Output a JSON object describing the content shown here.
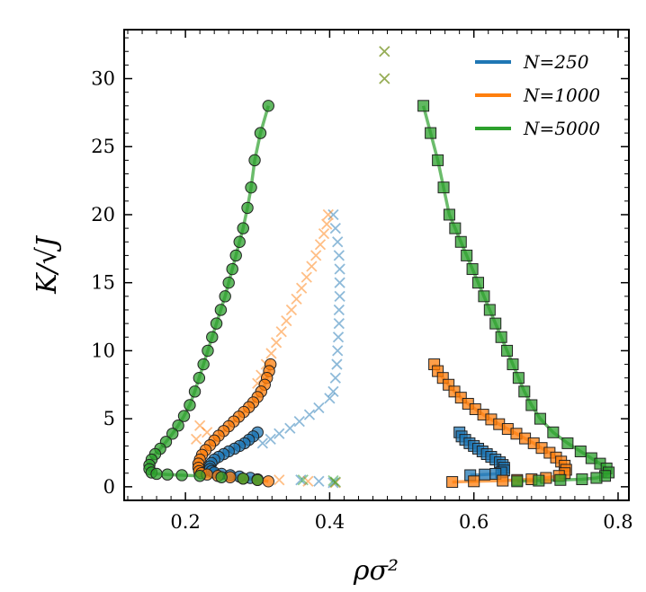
{
  "chart_data": {
    "type": "scatter",
    "title": "",
    "xlabel": "ρσ²",
    "ylabel": "K/√J",
    "xlim": [
      0.115,
      0.815
    ],
    "ylim": [
      -1.0,
      33.6
    ],
    "x_ticks": [
      0.2,
      0.4,
      0.6,
      0.8
    ],
    "x_tick_labels": [
      "0.2",
      "0.4",
      "0.6",
      "0.8"
    ],
    "y_ticks": [
      0,
      5,
      10,
      15,
      20,
      25,
      30
    ],
    "y_tick_labels": [
      "0",
      "5",
      "10",
      "15",
      "20",
      "25",
      "30"
    ],
    "legend_position": "top-right",
    "legend": [
      {
        "label": "N=250",
        "color": "#1f77b4"
      },
      {
        "label": "N=1000",
        "color": "#ff7f0e"
      },
      {
        "label": "N=5000",
        "color": "#2ca02c"
      }
    ],
    "series": [
      {
        "name": "N=250",
        "color": "#1f77b4",
        "gas": [
          [
            0.3,
            4.0
          ],
          [
            0.294,
            3.7
          ],
          [
            0.288,
            3.45
          ],
          [
            0.282,
            3.2
          ],
          [
            0.275,
            3.0
          ],
          [
            0.268,
            2.8
          ],
          [
            0.26,
            2.6
          ],
          [
            0.253,
            2.4
          ],
          [
            0.246,
            2.2
          ],
          [
            0.24,
            2.0
          ],
          [
            0.236,
            1.75
          ],
          [
            0.234,
            1.5
          ],
          [
            0.234,
            1.3
          ],
          [
            0.236,
            1.15
          ],
          [
            0.24,
            1.05
          ],
          [
            0.25,
            0.95
          ],
          [
            0.262,
            0.85
          ],
          [
            0.275,
            0.75
          ],
          [
            0.29,
            0.65
          ],
          [
            0.3,
            0.55
          ]
        ],
        "liquid": [
          [
            0.58,
            4.0
          ],
          [
            0.583,
            3.7
          ],
          [
            0.588,
            3.45
          ],
          [
            0.594,
            3.2
          ],
          [
            0.6,
            3.0
          ],
          [
            0.606,
            2.8
          ],
          [
            0.612,
            2.6
          ],
          [
            0.618,
            2.4
          ],
          [
            0.624,
            2.2
          ],
          [
            0.63,
            2.0
          ],
          [
            0.636,
            1.8
          ],
          [
            0.64,
            1.6
          ],
          [
            0.642,
            1.4
          ],
          [
            0.642,
            1.2
          ],
          [
            0.638,
            1.05
          ],
          [
            0.63,
            0.95
          ],
          [
            0.615,
            0.9
          ],
          [
            0.595,
            0.85
          ]
        ],
        "crosses": [
          [
            0.405,
            20.0
          ],
          [
            0.408,
            19.0
          ],
          [
            0.411,
            18.0
          ],
          [
            0.413,
            17.0
          ],
          [
            0.414,
            16.0
          ],
          [
            0.414,
            15.0
          ],
          [
            0.414,
            14.0
          ],
          [
            0.413,
            13.0
          ],
          [
            0.413,
            12.0
          ],
          [
            0.412,
            11.0
          ],
          [
            0.411,
            10.0
          ],
          [
            0.41,
            9.0
          ],
          [
            0.408,
            8.0
          ],
          [
            0.405,
            7.0
          ],
          [
            0.4,
            6.5
          ],
          [
            0.385,
            5.8
          ],
          [
            0.372,
            5.3
          ],
          [
            0.358,
            4.8
          ],
          [
            0.345,
            4.3
          ],
          [
            0.33,
            3.9
          ],
          [
            0.318,
            3.5
          ],
          [
            0.307,
            3.2
          ],
          [
            0.36,
            0.5
          ],
          [
            0.385,
            0.4
          ],
          [
            0.405,
            0.3
          ]
        ]
      },
      {
        "name": "N=1000",
        "color": "#ff7f0e",
        "gas": [
          [
            0.318,
            9.0
          ],
          [
            0.316,
            8.5
          ],
          [
            0.313,
            8.0
          ],
          [
            0.31,
            7.5
          ],
          [
            0.305,
            7.0
          ],
          [
            0.3,
            6.6
          ],
          [
            0.294,
            6.2
          ],
          [
            0.288,
            5.85
          ],
          [
            0.281,
            5.5
          ],
          [
            0.274,
            5.15
          ],
          [
            0.267,
            4.8
          ],
          [
            0.26,
            4.45
          ],
          [
            0.253,
            4.1
          ],
          [
            0.246,
            3.75
          ],
          [
            0.24,
            3.4
          ],
          [
            0.234,
            3.05
          ],
          [
            0.228,
            2.7
          ],
          [
            0.223,
            2.35
          ],
          [
            0.22,
            2.0
          ],
          [
            0.218,
            1.7
          ],
          [
            0.218,
            1.4
          ],
          [
            0.219,
            1.15
          ],
          [
            0.222,
            1.0
          ],
          [
            0.23,
            0.9
          ],
          [
            0.245,
            0.8
          ],
          [
            0.262,
            0.7
          ],
          [
            0.28,
            0.6
          ],
          [
            0.3,
            0.5
          ],
          [
            0.315,
            0.4
          ]
        ],
        "liquid": [
          [
            0.545,
            9.0
          ],
          [
            0.55,
            8.5
          ],
          [
            0.557,
            8.0
          ],
          [
            0.565,
            7.5
          ],
          [
            0.573,
            7.0
          ],
          [
            0.582,
            6.55
          ],
          [
            0.592,
            6.1
          ],
          [
            0.602,
            5.7
          ],
          [
            0.613,
            5.3
          ],
          [
            0.624,
            4.95
          ],
          [
            0.635,
            4.6
          ],
          [
            0.647,
            4.25
          ],
          [
            0.659,
            3.9
          ],
          [
            0.671,
            3.55
          ],
          [
            0.683,
            3.2
          ],
          [
            0.694,
            2.85
          ],
          [
            0.705,
            2.5
          ],
          [
            0.714,
            2.15
          ],
          [
            0.721,
            1.85
          ],
          [
            0.726,
            1.55
          ],
          [
            0.728,
            1.25
          ],
          [
            0.726,
            1.0
          ],
          [
            0.718,
            0.8
          ],
          [
            0.7,
            0.65
          ],
          [
            0.68,
            0.55
          ],
          [
            0.66,
            0.5
          ],
          [
            0.64,
            0.45
          ],
          [
            0.6,
            0.4
          ],
          [
            0.57,
            0.35
          ]
        ],
        "crosses": [
          [
            0.398,
            20.0
          ],
          [
            0.396,
            19.3
          ],
          [
            0.392,
            18.6
          ],
          [
            0.387,
            17.8
          ],
          [
            0.381,
            17.0
          ],
          [
            0.375,
            16.2
          ],
          [
            0.368,
            15.4
          ],
          [
            0.361,
            14.6
          ],
          [
            0.354,
            13.8
          ],
          [
            0.347,
            13.0
          ],
          [
            0.34,
            12.2
          ],
          [
            0.333,
            11.4
          ],
          [
            0.326,
            10.6
          ],
          [
            0.319,
            9.8
          ],
          [
            0.312,
            9.0
          ],
          [
            0.305,
            8.2
          ],
          [
            0.3,
            7.6
          ],
          [
            0.22,
            4.5
          ],
          [
            0.23,
            4.0
          ],
          [
            0.215,
            3.5
          ],
          [
            0.33,
            0.5
          ],
          [
            0.37,
            0.4
          ],
          [
            0.408,
            0.3
          ],
          [
            0.476,
            32.0
          ],
          [
            0.476,
            30.0
          ]
        ]
      },
      {
        "name": "N=5000",
        "color": "#2ca02c",
        "gas": [
          [
            0.315,
            28.0
          ],
          [
            0.304,
            26.0
          ],
          [
            0.296,
            24.0
          ],
          [
            0.291,
            22.0
          ],
          [
            0.286,
            20.5
          ],
          [
            0.28,
            19.0
          ],
          [
            0.275,
            18.0
          ],
          [
            0.27,
            17.0
          ],
          [
            0.265,
            16.0
          ],
          [
            0.26,
            15.0
          ],
          [
            0.255,
            14.0
          ],
          [
            0.249,
            13.0
          ],
          [
            0.243,
            12.0
          ],
          [
            0.237,
            11.0
          ],
          [
            0.231,
            10.0
          ],
          [
            0.225,
            9.0
          ],
          [
            0.219,
            8.0
          ],
          [
            0.213,
            7.0
          ],
          [
            0.206,
            6.0
          ],
          [
            0.198,
            5.2
          ],
          [
            0.19,
            4.5
          ],
          [
            0.182,
            3.9
          ],
          [
            0.173,
            3.3
          ],
          [
            0.165,
            2.8
          ],
          [
            0.158,
            2.4
          ],
          [
            0.153,
            2.0
          ],
          [
            0.15,
            1.6
          ],
          [
            0.15,
            1.3
          ],
          [
            0.153,
            1.05
          ],
          [
            0.16,
            0.95
          ],
          [
            0.175,
            0.9
          ],
          [
            0.195,
            0.85
          ],
          [
            0.22,
            0.8
          ],
          [
            0.25,
            0.7
          ],
          [
            0.28,
            0.6
          ],
          [
            0.3,
            0.5
          ]
        ],
        "liquid": [
          [
            0.53,
            28.0
          ],
          [
            0.54,
            26.0
          ],
          [
            0.55,
            24.0
          ],
          [
            0.558,
            22.0
          ],
          [
            0.566,
            20.0
          ],
          [
            0.574,
            19.0
          ],
          [
            0.582,
            18.0
          ],
          [
            0.59,
            17.0
          ],
          [
            0.598,
            16.0
          ],
          [
            0.606,
            15.0
          ],
          [
            0.614,
            14.0
          ],
          [
            0.622,
            13.0
          ],
          [
            0.63,
            12.0
          ],
          [
            0.638,
            11.0
          ],
          [
            0.646,
            10.0
          ],
          [
            0.654,
            9.0
          ],
          [
            0.662,
            8.0
          ],
          [
            0.67,
            7.0
          ],
          [
            0.68,
            6.0
          ],
          [
            0.692,
            5.0
          ],
          [
            0.71,
            4.0
          ],
          [
            0.73,
            3.2
          ],
          [
            0.748,
            2.6
          ],
          [
            0.763,
            2.1
          ],
          [
            0.775,
            1.7
          ],
          [
            0.784,
            1.35
          ],
          [
            0.787,
            1.05
          ],
          [
            0.782,
            0.8
          ],
          [
            0.77,
            0.65
          ],
          [
            0.75,
            0.55
          ],
          [
            0.72,
            0.5
          ],
          [
            0.69,
            0.45
          ],
          [
            0.66,
            0.4
          ]
        ],
        "crosses": [
          [
            0.363,
            0.5
          ],
          [
            0.405,
            0.45
          ],
          [
            0.408,
            0.35
          ],
          [
            0.476,
            32.0
          ],
          [
            0.476,
            30.0
          ]
        ]
      }
    ]
  }
}
